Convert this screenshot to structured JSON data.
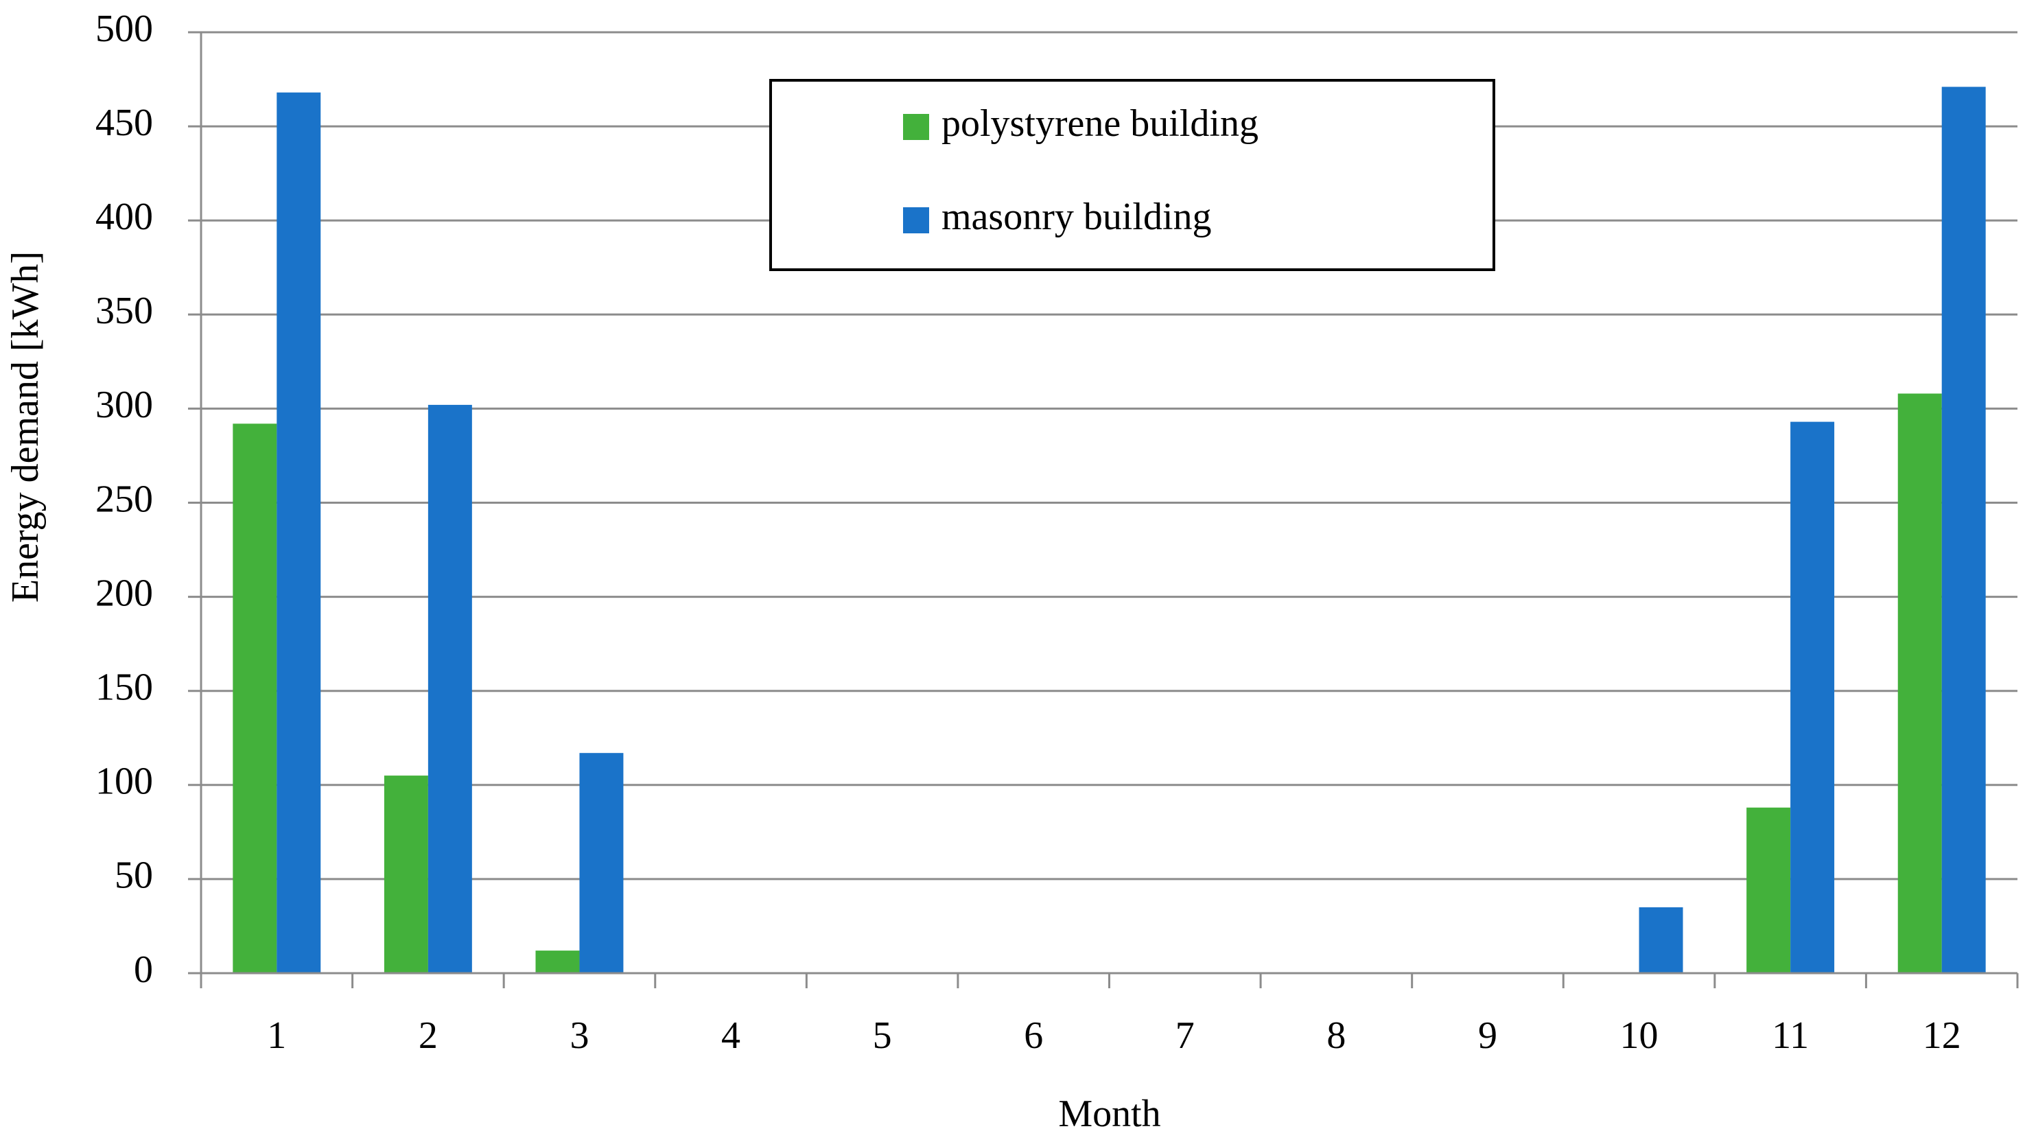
{
  "chart_data": {
    "type": "bar",
    "x_label": "Month",
    "y_label": "Energy demand [kWh]",
    "categories": [
      "1",
      "2",
      "3",
      "4",
      "5",
      "6",
      "7",
      "8",
      "9",
      "10",
      "11",
      "12"
    ],
    "series": [
      {
        "name": "polystyrene building",
        "color": "#43b13b",
        "values": [
          292,
          105,
          12,
          0,
          0,
          0,
          0,
          0,
          0,
          0,
          88,
          308
        ]
      },
      {
        "name": "masonry building",
        "color": "#1a73c9",
        "values": [
          468,
          302,
          117,
          0,
          0,
          0,
          0,
          0,
          0,
          35,
          293,
          471
        ]
      }
    ],
    "ylim": [
      0,
      500
    ],
    "yticks": [
      0,
      50,
      100,
      150,
      200,
      250,
      300,
      350,
      400,
      450,
      500
    ],
    "grid": true,
    "legend": "top"
  }
}
